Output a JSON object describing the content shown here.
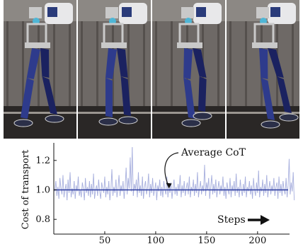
{
  "photo_strip": {
    "frame_count": 4,
    "colors": {
      "robot_body": "#2e3b8c",
      "robot_dark": "#1b2260",
      "frame_metal": "#c9c9c9",
      "shoe": "#2b2f48",
      "floor": "#2a2726"
    }
  },
  "chart_data": {
    "type": "line",
    "xlabel": "",
    "ylabel": "Cost of transport",
    "xlim": [
      0,
      230
    ],
    "ylim": [
      0.7,
      1.3
    ],
    "x_ticks": [
      50,
      100,
      150,
      200
    ],
    "y_ticks": [
      0.8,
      1.0,
      1.2
    ],
    "x_tick_labels": [
      "50",
      "100",
      "150",
      "200"
    ],
    "y_tick_labels": [
      "0.8",
      "1.0",
      "1.2"
    ],
    "grid": false,
    "series": [
      {
        "color": "#a6aedd",
        "x_start": 1,
        "x_step": 1,
        "values": [
          0.99,
          1.06,
          0.96,
          1.02,
          0.94,
          1.08,
          1.01,
          0.97,
          1.1,
          0.95,
          1.0,
          1.04,
          0.93,
          1.07,
          0.98,
          1.12,
          0.95,
          1.01,
          0.97,
          1.06,
          0.94,
          1.03,
          0.99,
          1.09,
          0.96,
          1.0,
          0.95,
          1.05,
          1.01,
          0.93,
          1.08,
          0.98,
          1.02,
          0.96,
          1.06,
          0.95,
          1.04,
          0.97,
          1.11,
          0.94,
          1.0,
          1.03,
          0.96,
          1.07,
          0.99,
          0.94,
          1.05,
          1.01,
          0.98,
          1.09,
          0.95,
          1.02,
          0.97,
          1.06,
          0.93,
          1.0,
          1.14,
          0.96,
          1.02,
          0.98,
          1.07,
          0.95,
          1.01,
          1.1,
          0.96,
          1.03,
          0.99,
          1.06,
          0.94,
          1.02,
          1.15,
          0.97,
          1.08,
          1.01,
          1.22,
          0.99,
          1.29,
          0.96,
          1.04,
          1.0,
          1.07,
          0.95,
          1.12,
          0.98,
          1.03,
          0.96,
          1.09,
          0.94,
          1.02,
          1.06,
          0.97,
          1.01,
          1.11,
          0.95,
          1.04,
          0.98,
          1.08,
          0.96,
          1.0,
          1.05,
          0.93,
          1.03,
          0.99,
          1.07,
          0.96,
          1.02,
          0.95,
          1.06,
          1.0,
          0.97,
          1.09,
          0.95,
          1.03,
          0.98,
          1.05,
          0.94,
          1.01,
          1.07,
          0.97,
          1.02,
          0.96,
          1.04,
          0.99,
          1.1,
          0.95,
          1.03,
          0.98,
          1.06,
          0.96,
          1.01,
          1.05,
          0.97,
          1.09,
          0.95,
          1.02,
          0.99,
          1.07,
          0.96,
          1.04,
          0.98,
          1.12,
          0.95,
          1.01,
          1.06,
          0.97,
          1.03,
          0.99,
          1.17,
          0.96,
          1.05,
          1.0,
          1.08,
          0.94,
          1.02,
          1.1,
          0.97,
          1.04,
          0.98,
          1.07,
          0.95,
          1.01,
          1.06,
          0.97,
          1.03,
          0.99,
          1.09,
          0.96,
          1.02,
          0.94,
          1.05,
          1.0,
          0.97,
          1.08,
          0.95,
          1.03,
          0.99,
          1.06,
          0.96,
          1.11,
          0.98,
          1.02,
          0.95,
          1.07,
          1.0,
          0.96,
          1.04,
          0.98,
          1.09,
          0.95,
          1.02,
          0.99,
          1.06,
          0.97,
          1.03,
          0.94,
          1.08,
          1.0,
          0.96,
          1.05,
          0.98,
          1.13,
          0.95,
          1.02,
          0.99,
          1.07,
          0.96,
          1.04,
          0.98,
          1.1,
          0.95,
          1.01,
          1.06,
          0.97,
          1.03,
          0.99,
          1.08,
          0.96,
          1.02,
          1.05,
          0.94,
          1.09,
          0.98,
          1.04,
          0.96,
          1.06,
          1.0,
          0.97,
          1.08,
          0.95,
          1.03,
          1.21,
          0.97,
          1.05,
          0.99,
          1.12,
          0.93
        ]
      },
      {
        "color": "#2b3a9e",
        "x": [
          0,
          230
        ],
        "values": [
          1.0,
          1.0
        ]
      }
    ],
    "annotations": [
      {
        "text": "Average CoT",
        "target_x": 113,
        "target_y": 1.0
      },
      {
        "text": "Steps"
      }
    ]
  }
}
